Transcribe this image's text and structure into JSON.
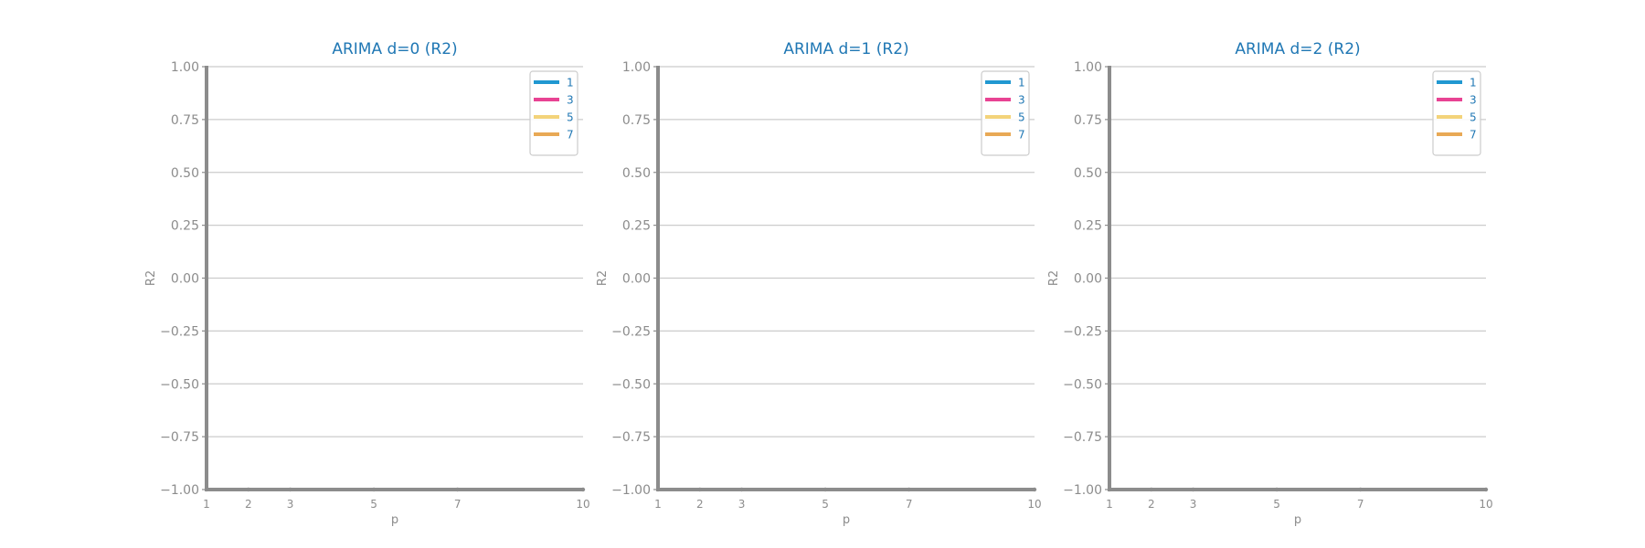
{
  "chart_data": [
    {
      "type": "line",
      "title": "ARIMA d=0 (R2)",
      "xlabel": "p",
      "ylabel": "R2",
      "xticks": [
        1,
        2,
        3,
        5,
        7,
        10
      ],
      "yticks": [
        "1.00",
        "0.75",
        "0.50",
        "0.25",
        "0.00",
        "−0.25",
        "−0.50",
        "−0.75",
        "−1.00"
      ],
      "xlim": [
        1,
        10
      ],
      "ylim": [
        -1,
        1
      ],
      "grid": true,
      "legend_position": "top-right",
      "series": [
        {
          "name": "1",
          "color": "#2098d1",
          "values": []
        },
        {
          "name": "3",
          "color": "#e84393",
          "values": []
        },
        {
          "name": "5",
          "color": "#f3d37a",
          "values": []
        },
        {
          "name": "7",
          "color": "#e8a955",
          "values": []
        }
      ]
    },
    {
      "type": "line",
      "title": "ARIMA d=1 (R2)",
      "xlabel": "p",
      "ylabel": "R2",
      "xticks": [
        1,
        2,
        3,
        5,
        7,
        10
      ],
      "yticks": [
        "1.00",
        "0.75",
        "0.50",
        "0.25",
        "0.00",
        "−0.25",
        "−0.50",
        "−0.75",
        "−1.00"
      ],
      "xlim": [
        1,
        10
      ],
      "ylim": [
        -1,
        1
      ],
      "grid": true,
      "legend_position": "top-right",
      "series": [
        {
          "name": "1",
          "color": "#2098d1",
          "values": []
        },
        {
          "name": "3",
          "color": "#e84393",
          "values": []
        },
        {
          "name": "5",
          "color": "#f3d37a",
          "values": []
        },
        {
          "name": "7",
          "color": "#e8a955",
          "values": []
        }
      ]
    },
    {
      "type": "line",
      "title": "ARIMA d=2 (R2)",
      "xlabel": "p",
      "ylabel": "R2",
      "xticks": [
        1,
        2,
        3,
        5,
        7,
        10
      ],
      "yticks": [
        "1.00",
        "0.75",
        "0.50",
        "0.25",
        "0.00",
        "−0.25",
        "−0.50",
        "−0.75",
        "−1.00"
      ],
      "xlim": [
        1,
        10
      ],
      "ylim": [
        -1,
        1
      ],
      "grid": true,
      "legend_position": "top-right",
      "series": [
        {
          "name": "1",
          "color": "#2098d1",
          "values": []
        },
        {
          "name": "3",
          "color": "#e84393",
          "values": []
        },
        {
          "name": "5",
          "color": "#f3d37a",
          "values": []
        },
        {
          "name": "7",
          "color": "#e8a955",
          "values": []
        }
      ]
    }
  ]
}
